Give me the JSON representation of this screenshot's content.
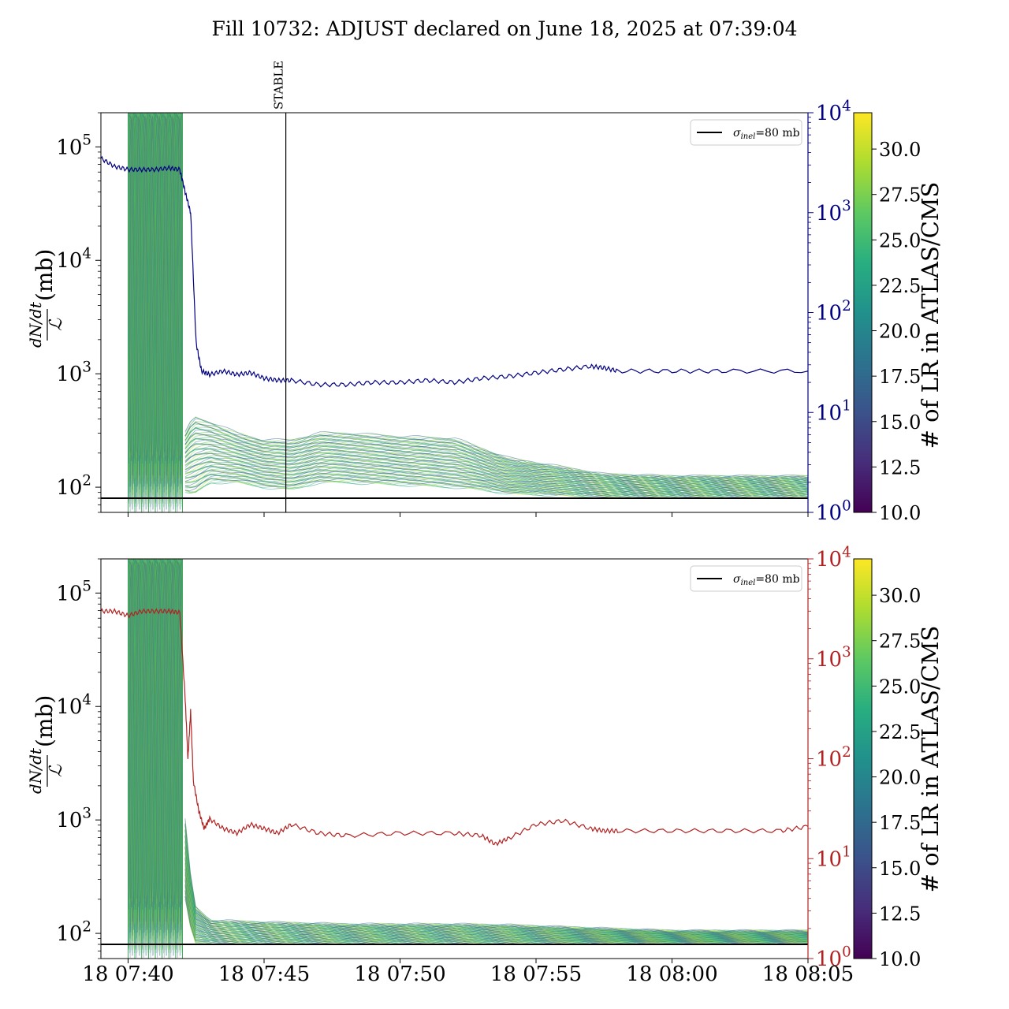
{
  "title": "Fill 10732: ADJUST declared on June 18, 2025 at 07:39:04",
  "colors": {
    "top_line": "#000080",
    "bottom_line": "#b22222",
    "sigma_line": "#000000",
    "marker_line": "#000000"
  },
  "x_ticks": [
    "18 07:40",
    "18 07:45",
    "18 07:50",
    "18 07:55",
    "18 08:00",
    "18 08:05"
  ],
  "left_y_ticks": [
    {
      "base": "10",
      "exp": "2"
    },
    {
      "base": "10",
      "exp": "3"
    },
    {
      "base": "10",
      "exp": "4"
    },
    {
      "base": "10",
      "exp": "5"
    }
  ],
  "right_y_ticks": [
    {
      "base": "10",
      "exp": "0"
    },
    {
      "base": "10",
      "exp": "1"
    },
    {
      "base": "10",
      "exp": "2"
    },
    {
      "base": "10",
      "exp": "3"
    },
    {
      "base": "10",
      "exp": "4"
    }
  ],
  "y_label": {
    "math": "dN/dt",
    "denominator": "ℒ",
    "unit": "(mb)"
  },
  "legend": {
    "sym": "σ",
    "sub": "inel",
    "rest": "=80 mb"
  },
  "stable_label": "STABLE",
  "colorbar": {
    "label": "# of LR in ATLAS/CMS",
    "ticks": [
      "10.0",
      "12.5",
      "15.0",
      "17.5",
      "20.0",
      "22.5",
      "25.0",
      "27.5",
      "30.0"
    ],
    "colormap": "viridis"
  },
  "chart_data": [
    {
      "type": "line",
      "panel": "top",
      "x_unit": "minutes after 18 07:40",
      "xlim": [
        -1.0,
        25.0
      ],
      "ylim_left": [
        60,
        200000
      ],
      "yscale_left": "log",
      "ylim_right": [
        1,
        10000
      ],
      "yscale_right": "log",
      "sigma_inel_mb": 80,
      "stable_marker_x": 5.8,
      "spikes_x": [
        0.0,
        0.25,
        0.5,
        0.75,
        1.0,
        1.25,
        1.5,
        1.75,
        2.0
      ],
      "bands": [
        {
          "x": [
            2.1,
            2.4,
            3.0,
            4.0,
            5.0,
            6.0,
            7.0,
            8.0,
            10.0,
            12.0,
            13.0,
            14.0,
            16.0,
            17.5,
            20.0,
            25.0
          ],
          "lo": [
            90,
            85,
            110,
            110,
            100,
            95,
            110,
            110,
            105,
            100,
            95,
            88,
            85,
            82,
            82,
            82
          ],
          "hi": [
            300,
            420,
            380,
            300,
            260,
            260,
            300,
            300,
            280,
            270,
            220,
            180,
            150,
            130,
            125,
            125
          ]
        }
      ],
      "series": [
        {
          "axis": "right",
          "x": [
            -1.0,
            -0.5,
            0.0,
            0.5,
            1.0,
            1.5,
            1.9,
            2.1,
            2.3,
            2.5,
            2.7,
            3.0,
            3.5,
            4.0,
            4.5,
            5.0,
            5.5,
            6.0,
            7.0,
            8.0,
            9.0,
            10.0,
            11.0,
            12.0,
            13.0,
            14.0,
            15.0,
            16.0,
            17.0,
            17.5,
            18.0,
            20.0,
            22.0,
            25.0
          ],
          "values": [
            3500,
            2900,
            2700,
            2700,
            2700,
            2800,
            2700,
            1600,
            1000,
            50,
            26,
            24,
            26,
            24,
            25,
            22,
            21,
            21,
            19,
            19,
            20,
            20,
            21,
            20,
            22,
            23,
            25,
            27,
            29,
            28,
            26,
            26,
            26,
            26
          ]
        }
      ]
    },
    {
      "type": "line",
      "panel": "bottom",
      "x_unit": "minutes after 18 07:40",
      "xlim": [
        -1.0,
        25.0
      ],
      "ylim_left": [
        60,
        200000
      ],
      "yscale_left": "log",
      "ylim_right": [
        1,
        10000
      ],
      "yscale_right": "log",
      "sigma_inel_mb": 80,
      "spikes_x": [
        0.0,
        0.25,
        0.5,
        0.75,
        1.0,
        1.25,
        1.5,
        1.75,
        2.0
      ],
      "bands": [
        {
          "x": [
            2.1,
            2.4,
            3.0,
            5.0,
            8.0,
            12.0,
            14.0,
            17.5,
            20.0,
            25.0
          ],
          "lo": [
            200,
            82,
            82,
            82,
            82,
            82,
            82,
            82,
            82,
            82
          ],
          "hi": [
            1000,
            180,
            130,
            125,
            120,
            120,
            118,
            110,
            105,
            105
          ]
        }
      ],
      "series": [
        {
          "axis": "right",
          "x": [
            -1.0,
            -0.5,
            0.0,
            0.5,
            1.0,
            1.5,
            1.9,
            2.1,
            2.2,
            2.3,
            2.4,
            2.6,
            2.8,
            3.0,
            3.5,
            4.0,
            4.5,
            5.0,
            5.5,
            6.0,
            7.0,
            8.0,
            10.0,
            12.0,
            13.0,
            13.5,
            14.0,
            15.0,
            16.0,
            17.0,
            17.5,
            18.0,
            20.0,
            22.0,
            24.0,
            25.0
          ],
          "values": [
            3000,
            3000,
            2700,
            3000,
            3000,
            3000,
            2900,
            400,
            100,
            300,
            60,
            30,
            20,
            25,
            20,
            18,
            22,
            20,
            18,
            22,
            18,
            17,
            18,
            18,
            17,
            14,
            16,
            22,
            24,
            20,
            19,
            19,
            19,
            19,
            19,
            21
          ]
        }
      ]
    }
  ]
}
